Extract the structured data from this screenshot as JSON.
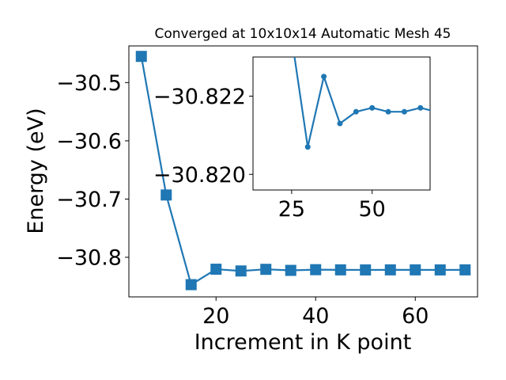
{
  "chart_data": [
    {
      "type": "line",
      "title": "Converged at 10x10x14 Automatic Mesh 45",
      "xlabel": "Increment in K point",
      "ylabel": "Energy (eV)",
      "xlim": [
        2.5,
        72.5
      ],
      "ylim": [
        -30.868,
        -30.437
      ],
      "xticks": [
        20,
        40,
        60
      ],
      "yticks": [
        -30.5,
        -30.6,
        -30.7,
        -30.8
      ],
      "xtick_labels": [
        "20",
        "40",
        "60"
      ],
      "ytick_labels": [
        "−30.5",
        "−30.6",
        "−30.7",
        "−30.8"
      ],
      "grid": false,
      "marker": "square",
      "color": "#1f77b4",
      "series": [
        {
          "x": [
            5,
            10,
            15,
            20,
            25,
            30,
            35,
            40,
            45,
            50,
            55,
            60,
            65,
            70
          ],
          "y": [
            -30.455,
            -30.693,
            -30.847,
            -30.8205,
            -30.8235,
            -30.8207,
            -30.8225,
            -30.8213,
            -30.8216,
            -30.8217,
            -30.8216,
            -30.8216,
            -30.8217,
            -30.8216
          ]
        }
      ]
    },
    {
      "type": "line",
      "title": "",
      "xlabel": "",
      "ylabel": "",
      "inset": true,
      "xlim": [
        13,
        68
      ],
      "ylim": [
        -30.8196,
        -30.823
      ],
      "xticks": [
        25,
        50
      ],
      "yticks": [
        -30.822,
        -30.82
      ],
      "xtick_labels": [
        "25",
        "50"
      ],
      "ytick_labels": [
        "−30.822",
        "−30.820"
      ],
      "grid": false,
      "marker": "circle",
      "color": "#1f77b4",
      "series": [
        {
          "x": [
            25,
            30,
            35,
            40,
            45,
            50,
            55,
            60,
            65,
            70
          ],
          "y": [
            -30.8235,
            -30.8207,
            -30.8225,
            -30.8213,
            -30.8216,
            -30.8217,
            -30.8216,
            -30.8216,
            -30.8217,
            -30.8216
          ]
        }
      ]
    }
  ]
}
